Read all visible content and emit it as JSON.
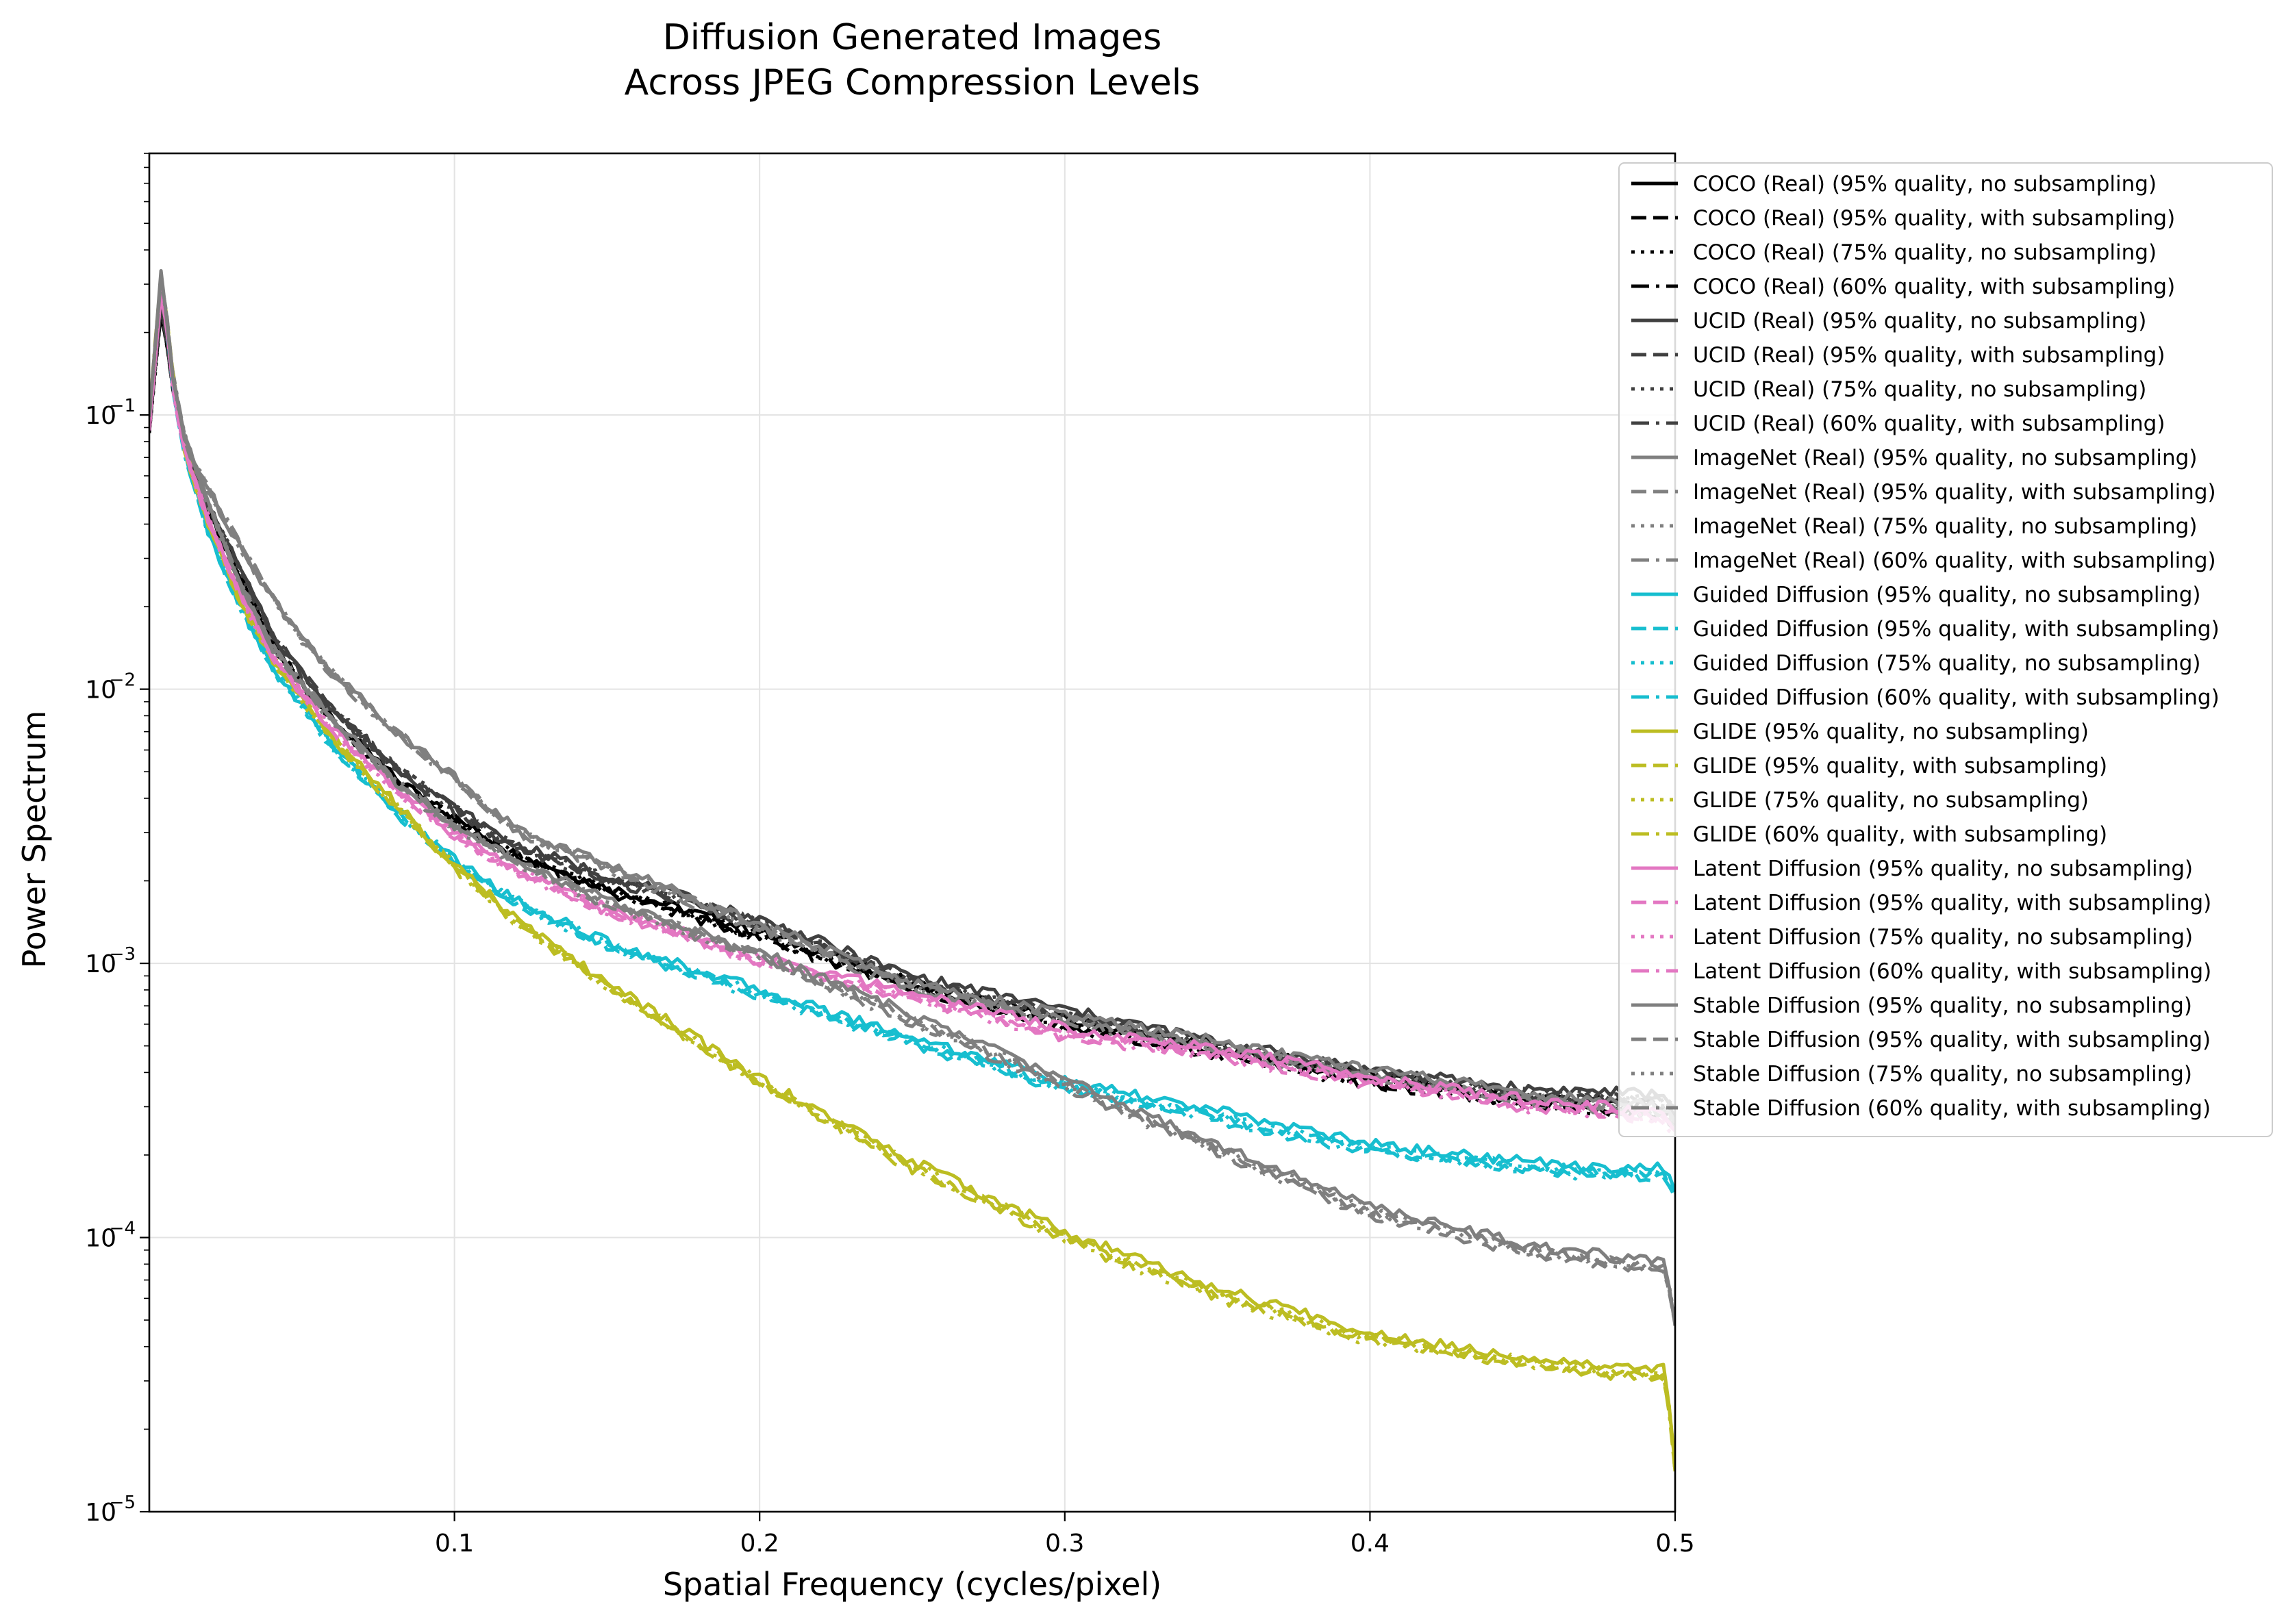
{
  "chart_data": {
    "type": "line",
    "title_lines": [
      "Diffusion Generated Images",
      "Across JPEG Compression Levels"
    ],
    "xlabel": "Spatial Frequency (cycles/pixel)",
    "ylabel": "Power Spectrum",
    "xscale": "linear",
    "yscale": "log",
    "xlim": [
      0.0,
      0.5
    ],
    "ylim": [
      1e-05,
      0.9
    ],
    "grid": true,
    "legend_location": "upper right, outside axes",
    "x_ticks": [
      {
        "value": 0.1,
        "label": "0.1"
      },
      {
        "value": 0.2,
        "label": "0.2"
      },
      {
        "value": 0.3,
        "label": "0.3"
      },
      {
        "value": 0.4,
        "label": "0.4"
      },
      {
        "value": 0.5,
        "label": "0.5"
      }
    ],
    "y_ticks": [
      {
        "value": 1e-05,
        "base": "10",
        "exp": "−5"
      },
      {
        "value": 0.0001,
        "base": "10",
        "exp": "−4"
      },
      {
        "value": 0.001,
        "base": "10",
        "exp": "−3"
      },
      {
        "value": 0.01,
        "base": "10",
        "exp": "−2"
      },
      {
        "value": 0.1,
        "base": "10",
        "exp": "−1"
      }
    ],
    "groups": [
      {
        "name": "COCO (Real)",
        "color": "#000000",
        "x": [
          0.0,
          0.004,
          0.008,
          0.012,
          0.02,
          0.03,
          0.04,
          0.05,
          0.06,
          0.08,
          0.1,
          0.12,
          0.15,
          0.2,
          0.25,
          0.3,
          0.35,
          0.4,
          0.45,
          0.48,
          0.497,
          0.5
        ],
        "values": [
          0.09,
          0.25,
          0.12,
          0.07,
          0.043,
          0.025,
          0.015,
          0.0105,
          0.0078,
          0.0048,
          0.0034,
          0.0025,
          0.0019,
          0.0013,
          0.00085,
          0.00062,
          0.0005,
          0.00039,
          0.00033,
          0.00031,
          0.0003,
          0.00027
        ]
      },
      {
        "name": "UCID (Real)",
        "color": "#404040",
        "x": [
          0.0,
          0.004,
          0.008,
          0.012,
          0.02,
          0.03,
          0.04,
          0.05,
          0.06,
          0.08,
          0.1,
          0.12,
          0.15,
          0.2,
          0.25,
          0.3,
          0.35,
          0.4,
          0.45,
          0.48,
          0.497,
          0.5
        ],
        "values": [
          0.095,
          0.26,
          0.125,
          0.072,
          0.045,
          0.027,
          0.016,
          0.0115,
          0.0085,
          0.0053,
          0.0037,
          0.0027,
          0.0021,
          0.00145,
          0.0009,
          0.00068,
          0.00052,
          0.00041,
          0.00035,
          0.00034,
          0.00033,
          0.0003
        ]
      },
      {
        "name": "ImageNet (Real)",
        "color": "#808080",
        "x": [
          0.0,
          0.004,
          0.008,
          0.012,
          0.02,
          0.03,
          0.04,
          0.05,
          0.06,
          0.08,
          0.1,
          0.12,
          0.15,
          0.2,
          0.25,
          0.3,
          0.35,
          0.4,
          0.45,
          0.48,
          0.497,
          0.5
        ],
        "values": [
          0.1,
          0.3,
          0.13,
          0.078,
          0.052,
          0.033,
          0.022,
          0.0155,
          0.0115,
          0.0072,
          0.0048,
          0.0031,
          0.0023,
          0.0014,
          0.00085,
          0.00065,
          0.00052,
          0.00041,
          0.00034,
          0.00031,
          0.0003,
          0.00027
        ]
      },
      {
        "name": "Guided Diffusion",
        "color": "#17becf",
        "x": [
          0.0,
          0.004,
          0.008,
          0.012,
          0.02,
          0.03,
          0.04,
          0.05,
          0.06,
          0.08,
          0.1,
          0.12,
          0.15,
          0.2,
          0.25,
          0.3,
          0.35,
          0.4,
          0.45,
          0.48,
          0.497,
          0.5
        ],
        "values": [
          0.09,
          0.33,
          0.12,
          0.07,
          0.036,
          0.02,
          0.0122,
          0.0088,
          0.0062,
          0.0037,
          0.0024,
          0.0017,
          0.0012,
          0.0008,
          0.00054,
          0.00037,
          0.00029,
          0.00022,
          0.00019,
          0.00018,
          0.00018,
          0.00015
        ]
      },
      {
        "name": "GLIDE",
        "color": "#bcbd22",
        "x": [
          0.0,
          0.004,
          0.008,
          0.012,
          0.02,
          0.03,
          0.04,
          0.05,
          0.06,
          0.08,
          0.1,
          0.12,
          0.15,
          0.2,
          0.25,
          0.3,
          0.35,
          0.4,
          0.45,
          0.48,
          0.497,
          0.5
        ],
        "values": [
          0.1,
          0.33,
          0.13,
          0.072,
          0.038,
          0.021,
          0.0132,
          0.0093,
          0.0067,
          0.0039,
          0.0023,
          0.00145,
          0.00085,
          0.00038,
          0.00019,
          0.000105,
          6.5e-05,
          4.5e-05,
          3.7e-05,
          3.4e-05,
          3.3e-05,
          1.5e-05
        ]
      },
      {
        "name": "Latent Diffusion",
        "color": "#e377c2",
        "x": [
          0.0,
          0.004,
          0.008,
          0.012,
          0.02,
          0.03,
          0.04,
          0.05,
          0.06,
          0.08,
          0.1,
          0.12,
          0.15,
          0.2,
          0.25,
          0.3,
          0.35,
          0.4,
          0.45,
          0.48,
          0.497,
          0.5
        ],
        "values": [
          0.09,
          0.3,
          0.12,
          0.07,
          0.04,
          0.022,
          0.0135,
          0.0098,
          0.0072,
          0.0044,
          0.003,
          0.0022,
          0.0016,
          0.00105,
          0.00078,
          0.00058,
          0.00049,
          0.00039,
          0.00032,
          0.0003,
          0.00028,
          0.00025
        ]
      },
      {
        "name": "Stable Diffusion",
        "color": "#7f7f7f",
        "x": [
          0.0,
          0.004,
          0.008,
          0.012,
          0.02,
          0.03,
          0.04,
          0.05,
          0.06,
          0.08,
          0.1,
          0.12,
          0.15,
          0.2,
          0.25,
          0.3,
          0.35,
          0.4,
          0.45,
          0.48,
          0.497,
          0.5
        ],
        "values": [
          0.1,
          0.34,
          0.13,
          0.08,
          0.045,
          0.024,
          0.0145,
          0.0105,
          0.0078,
          0.0047,
          0.0032,
          0.0024,
          0.0017,
          0.0011,
          0.00065,
          0.00038,
          0.00022,
          0.00013,
          9.5e-05,
          8.5e-05,
          8e-05,
          5e-05
        ]
      }
    ],
    "variants": [
      {
        "label": "95% quality, no subsampling",
        "dash": "solid",
        "factor": 1.0
      },
      {
        "label": "95% quality, with subsampling",
        "dash": "dashed",
        "factor": 0.95
      },
      {
        "label": "75% quality, no subsampling",
        "dash": "dotted",
        "factor": 0.96
      },
      {
        "label": "60% quality, with subsampling",
        "dash": "dashdot",
        "factor": 0.93
      }
    ],
    "legend_entries": [
      "COCO (Real) (95% quality, no subsampling)",
      "COCO (Real) (95% quality, with subsampling)",
      "COCO (Real) (75% quality, no subsampling)",
      "COCO (Real) (60% quality, with subsampling)",
      "UCID (Real) (95% quality, no subsampling)",
      "UCID (Real) (95% quality, with subsampling)",
      "UCID (Real) (75% quality, no subsampling)",
      "UCID (Real) (60% quality, with subsampling)",
      "ImageNet (Real) (95% quality, no subsampling)",
      "ImageNet (Real) (95% quality, with subsampling)",
      "ImageNet (Real) (75% quality, no subsampling)",
      "ImageNet (Real) (60% quality, with subsampling)",
      "Guided Diffusion (95% quality, no subsampling)",
      "Guided Diffusion (95% quality, with subsampling)",
      "Guided Diffusion (75% quality, no subsampling)",
      "Guided Diffusion (60% quality, with subsampling)",
      "GLIDE (95% quality, no subsampling)",
      "GLIDE (95% quality, with subsampling)",
      "GLIDE (75% quality, no subsampling)",
      "GLIDE (60% quality, with subsampling)",
      "Latent Diffusion (95% quality, no subsampling)",
      "Latent Diffusion (95% quality, with subsampling)",
      "Latent Diffusion (75% quality, no subsampling)",
      "Latent Diffusion (60% quality, with subsampling)",
      "Stable Diffusion (95% quality, no subsampling)",
      "Stable Diffusion (95% quality, with subsampling)",
      "Stable Diffusion (75% quality, no subsampling)",
      "Stable Diffusion (60% quality, with subsampling)"
    ]
  }
}
